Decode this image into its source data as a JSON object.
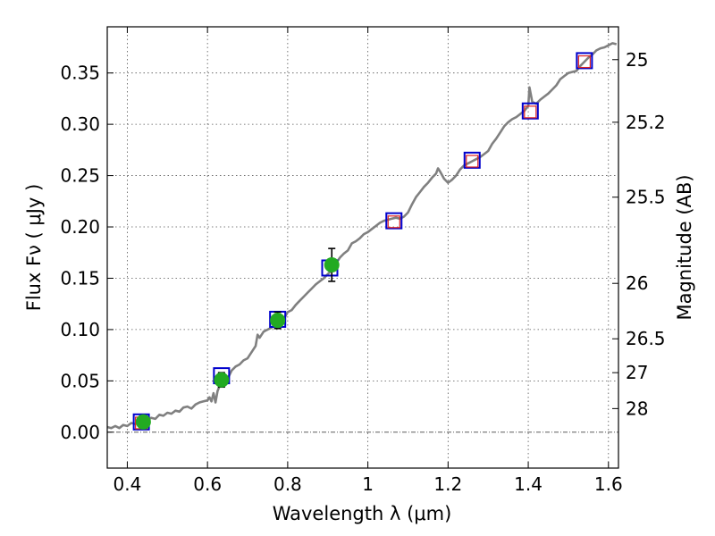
{
  "chart_data": {
    "type": "line",
    "xlabel": "Wavelength  λ (μm)",
    "ylabel": "Flux  Fν  ( μJy )",
    "ylabel_right": "Magnitude (AB)",
    "xlim": [
      0.35,
      1.625
    ],
    "ylim": [
      -0.035,
      0.395
    ],
    "grid": true,
    "x_ticks": [
      {
        "value": 0.4,
        "label": "0.4"
      },
      {
        "value": 0.6,
        "label": "0.6"
      },
      {
        "value": 0.8,
        "label": "0.8"
      },
      {
        "value": 1.0,
        "label": "1"
      },
      {
        "value": 1.2,
        "label": "1.2"
      },
      {
        "value": 1.4,
        "label": "1.4"
      },
      {
        "value": 1.6,
        "label": "1.6"
      }
    ],
    "y_ticks": [
      {
        "value": 0.0,
        "label": "0.00"
      },
      {
        "value": 0.05,
        "label": "0.05"
      },
      {
        "value": 0.1,
        "label": "0.10"
      },
      {
        "value": 0.15,
        "label": "0.15"
      },
      {
        "value": 0.2,
        "label": "0.20"
      },
      {
        "value": 0.25,
        "label": "0.25"
      },
      {
        "value": 0.3,
        "label": "0.30"
      },
      {
        "value": 0.35,
        "label": "0.35"
      }
    ],
    "right_ticks": [
      {
        "flux": 0.363,
        "label": "25"
      },
      {
        "flux": 0.302,
        "label": "25.2"
      },
      {
        "flux": 0.229,
        "label": "25.5"
      },
      {
        "flux": 0.145,
        "label": "26"
      },
      {
        "flux": 0.091,
        "label": "26.5"
      },
      {
        "flux": 0.058,
        "label": "27"
      },
      {
        "flux": 0.023,
        "label": "28"
      }
    ],
    "series": [
      {
        "kind": "spectrum",
        "color": "#808080",
        "points": [
          [
            0.35,
            0.005
          ],
          [
            0.36,
            0.004
          ],
          [
            0.37,
            0.006
          ],
          [
            0.38,
            0.004
          ],
          [
            0.39,
            0.007
          ],
          [
            0.4,
            0.006
          ],
          [
            0.41,
            0.009
          ],
          [
            0.42,
            0.008
          ],
          [
            0.43,
            0.01
          ],
          [
            0.44,
            0.009
          ],
          [
            0.45,
            0.012
          ],
          [
            0.46,
            0.014
          ],
          [
            0.47,
            0.013
          ],
          [
            0.48,
            0.017
          ],
          [
            0.49,
            0.016
          ],
          [
            0.5,
            0.019
          ],
          [
            0.51,
            0.018
          ],
          [
            0.52,
            0.021
          ],
          [
            0.53,
            0.02
          ],
          [
            0.54,
            0.024
          ],
          [
            0.55,
            0.025
          ],
          [
            0.56,
            0.023
          ],
          [
            0.57,
            0.027
          ],
          [
            0.58,
            0.029
          ],
          [
            0.59,
            0.03
          ],
          [
            0.6,
            0.031
          ],
          [
            0.605,
            0.034
          ],
          [
            0.61,
            0.03
          ],
          [
            0.615,
            0.038
          ],
          [
            0.62,
            0.029
          ],
          [
            0.625,
            0.04
          ],
          [
            0.63,
            0.045
          ],
          [
            0.64,
            0.053
          ],
          [
            0.65,
            0.052
          ],
          [
            0.66,
            0.06
          ],
          [
            0.67,
            0.064
          ],
          [
            0.68,
            0.066
          ],
          [
            0.69,
            0.07
          ],
          [
            0.7,
            0.072
          ],
          [
            0.71,
            0.078
          ],
          [
            0.72,
            0.084
          ],
          [
            0.725,
            0.095
          ],
          [
            0.73,
            0.092
          ],
          [
            0.74,
            0.098
          ],
          [
            0.75,
            0.1
          ],
          [
            0.76,
            0.102
          ],
          [
            0.77,
            0.105
          ],
          [
            0.78,
            0.106
          ],
          [
            0.79,
            0.11
          ],
          [
            0.8,
            0.117
          ],
          [
            0.81,
            0.119
          ],
          [
            0.82,
            0.124
          ],
          [
            0.83,
            0.128
          ],
          [
            0.84,
            0.132
          ],
          [
            0.85,
            0.136
          ],
          [
            0.86,
            0.14
          ],
          [
            0.87,
            0.144
          ],
          [
            0.88,
            0.147
          ],
          [
            0.89,
            0.15
          ],
          [
            0.9,
            0.154
          ],
          [
            0.91,
            0.158
          ],
          [
            0.92,
            0.164
          ],
          [
            0.93,
            0.17
          ],
          [
            0.94,
            0.174
          ],
          [
            0.95,
            0.177
          ],
          [
            0.96,
            0.184
          ],
          [
            0.97,
            0.186
          ],
          [
            0.98,
            0.189
          ],
          [
            0.99,
            0.193
          ],
          [
            1.0,
            0.195
          ],
          [
            1.01,
            0.198
          ],
          [
            1.02,
            0.201
          ],
          [
            1.03,
            0.204
          ],
          [
            1.04,
            0.206
          ],
          [
            1.05,
            0.207
          ],
          [
            1.06,
            0.208
          ],
          [
            1.07,
            0.209
          ],
          [
            1.08,
            0.208
          ],
          [
            1.09,
            0.21
          ],
          [
            1.1,
            0.214
          ],
          [
            1.11,
            0.222
          ],
          [
            1.12,
            0.229
          ],
          [
            1.13,
            0.234
          ],
          [
            1.14,
            0.239
          ],
          [
            1.15,
            0.243
          ],
          [
            1.16,
            0.248
          ],
          [
            1.17,
            0.252
          ],
          [
            1.175,
            0.257
          ],
          [
            1.18,
            0.254
          ],
          [
            1.19,
            0.247
          ],
          [
            1.2,
            0.243
          ],
          [
            1.21,
            0.246
          ],
          [
            1.22,
            0.25
          ],
          [
            1.23,
            0.256
          ],
          [
            1.24,
            0.26
          ],
          [
            1.25,
            0.262
          ],
          [
            1.26,
            0.264
          ],
          [
            1.27,
            0.266
          ],
          [
            1.28,
            0.268
          ],
          [
            1.29,
            0.271
          ],
          [
            1.3,
            0.274
          ],
          [
            1.31,
            0.281
          ],
          [
            1.32,
            0.286
          ],
          [
            1.33,
            0.292
          ],
          [
            1.34,
            0.298
          ],
          [
            1.35,
            0.302
          ],
          [
            1.36,
            0.305
          ],
          [
            1.37,
            0.307
          ],
          [
            1.38,
            0.31
          ],
          [
            1.39,
            0.313
          ],
          [
            1.4,
            0.318
          ],
          [
            1.403,
            0.336
          ],
          [
            1.41,
            0.322
          ],
          [
            1.42,
            0.32
          ],
          [
            1.43,
            0.324
          ],
          [
            1.44,
            0.327
          ],
          [
            1.45,
            0.33
          ],
          [
            1.46,
            0.334
          ],
          [
            1.47,
            0.338
          ],
          [
            1.48,
            0.344
          ],
          [
            1.49,
            0.347
          ],
          [
            1.5,
            0.35
          ],
          [
            1.51,
            0.351
          ],
          [
            1.52,
            0.352
          ],
          [
            1.53,
            0.357
          ],
          [
            1.54,
            0.361
          ],
          [
            1.55,
            0.365
          ],
          [
            1.56,
            0.368
          ],
          [
            1.57,
            0.372
          ],
          [
            1.58,
            0.374
          ],
          [
            1.59,
            0.375
          ],
          [
            1.6,
            0.377
          ],
          [
            1.61,
            0.379
          ],
          [
            1.62,
            0.378
          ]
        ]
      },
      {
        "kind": "model-squares-blue",
        "color": "#0000cc",
        "points": [
          [
            0.435,
            0.01
          ],
          [
            0.635,
            0.055
          ],
          [
            0.775,
            0.11
          ],
          [
            0.905,
            0.16
          ],
          [
            1.065,
            0.206
          ],
          [
            1.26,
            0.265
          ],
          [
            1.405,
            0.313
          ],
          [
            1.54,
            0.362
          ]
        ]
      },
      {
        "kind": "model-squares-red",
        "color": "#dd2222",
        "points": [
          [
            0.435,
            0.009
          ],
          [
            1.065,
            0.205
          ],
          [
            1.26,
            0.264
          ],
          [
            1.405,
            0.312
          ],
          [
            1.54,
            0.361
          ]
        ]
      },
      {
        "kind": "observed-points",
        "color": "#22aa22",
        "points": [
          {
            "x": 0.44,
            "y": 0.01,
            "err": 0.0
          },
          {
            "x": 0.635,
            "y": 0.051,
            "err": 0.007
          },
          {
            "x": 0.775,
            "y": 0.109,
            "err": 0.008
          },
          {
            "x": 0.91,
            "y": 0.163,
            "err": 0.016
          }
        ]
      }
    ]
  }
}
